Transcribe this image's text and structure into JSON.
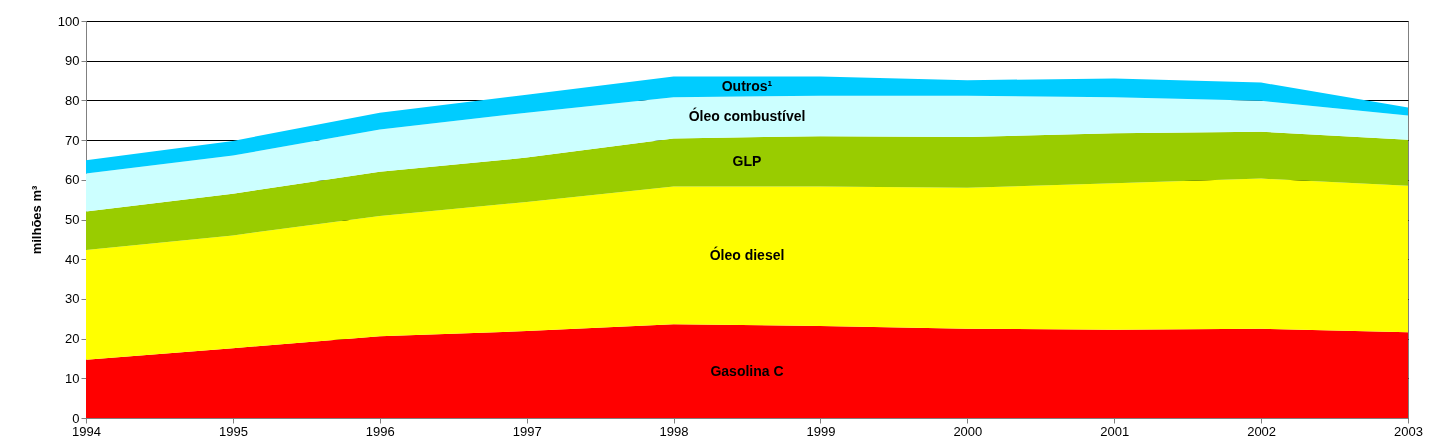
{
  "chart_data": {
    "type": "area",
    "stacked": true,
    "ylabel": "milhões m³",
    "x": [
      1994,
      1995,
      1996,
      1997,
      1998,
      1999,
      2000,
      2001,
      2002,
      2003
    ],
    "xlim": [
      1994,
      2003
    ],
    "xticks": [
      1994,
      1995,
      1996,
      1997,
      1998,
      1999,
      2000,
      2001,
      2002,
      2003
    ],
    "ylim": [
      0,
      100
    ],
    "yticks": [
      0,
      10,
      20,
      30,
      40,
      50,
      60,
      70,
      80,
      90,
      100
    ],
    "grid": "y",
    "legend": false,
    "series": [
      {
        "name": "Gasolina C",
        "color": "#ff0000",
        "values": [
          14.7,
          17.6,
          20.6,
          21.9,
          23.6,
          23.2,
          22.5,
          22.2,
          22.5,
          21.6
        ]
      },
      {
        "name": "Óleo diesel",
        "color": "#ffff00",
        "values": [
          27.6,
          28.4,
          30.3,
          32.5,
          34.7,
          35.1,
          35.5,
          36.9,
          37.8,
          36.9
        ]
      },
      {
        "name": "GLP",
        "color": "#99cc00",
        "values": [
          9.7,
          10.5,
          11.1,
          11.2,
          12.1,
          12.7,
          12.8,
          12.6,
          11.8,
          11.6
        ]
      },
      {
        "name": "Óleo combustível",
        "color": "#ccffff",
        "values": [
          9.6,
          9.6,
          10.7,
          11.3,
          10.4,
          10.2,
          10.4,
          9.1,
          7.8,
          6.1
        ]
      },
      {
        "name": "Outros¹",
        "color": "#00ccff",
        "values": [
          3.3,
          3.7,
          4.2,
          4.5,
          5.2,
          4.8,
          3.9,
          4.7,
          4.6,
          2.0
        ]
      }
    ]
  }
}
